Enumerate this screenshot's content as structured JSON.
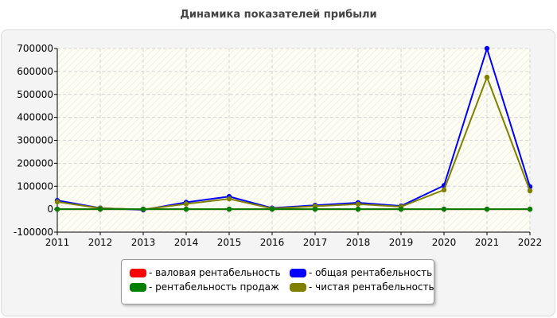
{
  "chart_data": {
    "type": "line",
    "title": "Динамика показателей прибыли",
    "xlabel": "",
    "ylabel": "",
    "x": [
      "2011",
      "2012",
      "2013",
      "2014",
      "2015",
      "2016",
      "2017",
      "2018",
      "2019",
      "2020",
      "2021",
      "2022"
    ],
    "ylim": [
      -100000,
      700000
    ],
    "yticks": [
      "700000",
      "600000",
      "500000",
      "400000",
      "300000",
      "200000",
      "100000",
      "0",
      "-100000"
    ],
    "grid": true,
    "legend_position": "bottom",
    "series": [
      {
        "name": "- валовая рентабельность",
        "color": "#ff0000",
        "values": [
          0,
          0,
          0,
          0,
          0,
          0,
          0,
          0,
          0,
          0,
          0,
          0
        ]
      },
      {
        "name": "- общая рентабельность",
        "color": "#0000ff",
        "values": [
          38000,
          5000,
          -3000,
          30000,
          55000,
          5000,
          17000,
          28000,
          14000,
          103000,
          700000,
          98000
        ]
      },
      {
        "name": "- рентабельность продаж",
        "color": "#008000",
        "values": [
          0,
          0,
          0,
          0,
          0,
          0,
          0,
          0,
          0,
          0,
          0,
          0
        ]
      },
      {
        "name": "- чистая рентабельность",
        "color": "#808000",
        "values": [
          32000,
          4000,
          -1000,
          23000,
          45000,
          3000,
          13000,
          22000,
          11000,
          84000,
          575000,
          80000
        ]
      }
    ]
  }
}
